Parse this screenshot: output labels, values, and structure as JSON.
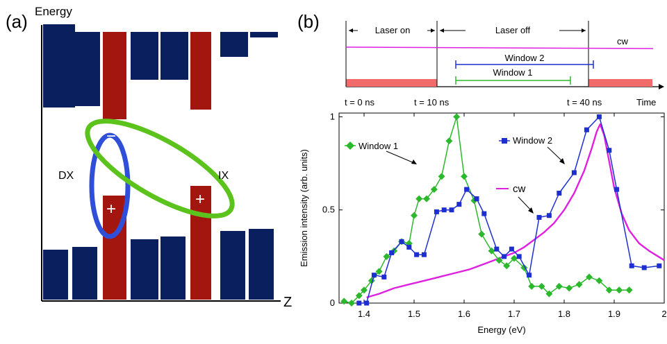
{
  "panel_a": {
    "label": "(a)",
    "y_axis_label": "Energy",
    "x_axis_label": "Z",
    "dx_label": "DX",
    "ix_label": "IX",
    "minus_sign": "−",
    "plus_sign": "+",
    "colors": {
      "barrier": "#0a1f5e",
      "well": "#a3150f",
      "dx_loop": "#2f4fd9",
      "ix_loop": "#5cc21c"
    }
  },
  "panel_b": {
    "label": "(b)",
    "timing": {
      "laser_on": "Laser on",
      "laser_off": "Laser off",
      "cw": "cw",
      "window1": "Window 1",
      "window2": "Window 2",
      "t0": "t = 0 ns",
      "t10": "t = 10 ns",
      "t40": "t = 40 ns",
      "time": "Time",
      "pulse_color": "#f26b6b",
      "cw_color": "#e020e0",
      "window1_color": "#2cb82c",
      "window2_color": "#1d2fd1"
    }
  },
  "chart_data": {
    "type": "line",
    "xlabel": "Energy (eV)",
    "ylabel": "Emission intensity (arb. units)",
    "xlim": [
      1.35,
      2.0
    ],
    "ylim": [
      0,
      1.02
    ],
    "xticks": [
      1.4,
      1.5,
      1.6,
      1.7,
      1.8,
      1.9,
      2.0
    ],
    "xtick_labels": [
      "1.4",
      "1.5",
      "1.6",
      "1.7",
      "1.8",
      "1.9",
      "2"
    ],
    "yticks": [
      0,
      0.5,
      1
    ],
    "ytick_labels": [
      "0",
      "0.5",
      "1"
    ],
    "series": [
      {
        "name": "Window 1",
        "color": "#2cb82c",
        "marker": "diamond",
        "x": [
          1.36,
          1.375,
          1.39,
          1.4,
          1.415,
          1.43,
          1.445,
          1.46,
          1.475,
          1.49,
          1.5,
          1.51,
          1.525,
          1.54,
          1.555,
          1.57,
          1.585,
          1.6,
          1.62,
          1.635,
          1.655,
          1.67,
          1.685,
          1.7,
          1.72,
          1.735,
          1.755,
          1.77,
          1.79,
          1.81,
          1.83,
          1.85,
          1.87,
          1.89,
          1.91,
          1.93
        ],
        "y": [
          0.01,
          0.0,
          0.04,
          0.07,
          0.12,
          0.17,
          0.25,
          0.28,
          0.33,
          0.32,
          0.47,
          0.56,
          0.56,
          0.61,
          0.68,
          0.87,
          1.0,
          0.68,
          0.55,
          0.37,
          0.28,
          0.23,
          0.2,
          0.24,
          0.19,
          0.09,
          0.09,
          0.05,
          0.09,
          0.08,
          0.1,
          0.14,
          0.12,
          0.07,
          0.07,
          0.07
        ]
      },
      {
        "name": "Window 2",
        "color": "#1d2fd1",
        "marker": "square",
        "x": [
          1.39,
          1.405,
          1.42,
          1.44,
          1.455,
          1.475,
          1.49,
          1.505,
          1.52,
          1.545,
          1.56,
          1.575,
          1.59,
          1.605,
          1.625,
          1.64,
          1.665,
          1.68,
          1.695,
          1.71,
          1.73,
          1.75,
          1.77,
          1.79,
          1.82,
          1.845,
          1.87,
          1.89,
          1.905,
          1.935,
          1.96,
          1.99
        ],
        "y": [
          0.0,
          0.0,
          0.15,
          0.14,
          0.27,
          0.33,
          0.3,
          0.26,
          0.26,
          0.49,
          0.5,
          0.5,
          0.53,
          0.61,
          0.56,
          0.48,
          0.29,
          0.25,
          0.29,
          0.25,
          0.15,
          0.46,
          0.47,
          0.59,
          0.7,
          0.93,
          1.0,
          0.82,
          0.61,
          0.2,
          0.19,
          0.2
        ]
      },
      {
        "name": "cw",
        "color": "#e020e0",
        "marker": "none",
        "x": [
          1.405,
          1.43,
          1.46,
          1.49,
          1.52,
          1.55,
          1.58,
          1.61,
          1.64,
          1.67,
          1.7,
          1.72,
          1.74,
          1.76,
          1.78,
          1.8,
          1.82,
          1.84,
          1.855,
          1.865,
          1.872,
          1.88,
          1.89,
          1.9,
          1.915,
          1.93,
          1.95,
          1.97,
          2.0
        ],
        "y": [
          0.03,
          0.05,
          0.08,
          0.1,
          0.12,
          0.14,
          0.16,
          0.18,
          0.21,
          0.24,
          0.27,
          0.3,
          0.34,
          0.38,
          0.43,
          0.5,
          0.59,
          0.71,
          0.83,
          0.92,
          0.96,
          0.9,
          0.76,
          0.62,
          0.48,
          0.39,
          0.32,
          0.28,
          0.23
        ]
      }
    ],
    "annotations": [
      {
        "text": "Window 1"
      },
      {
        "text": "Window 2"
      },
      {
        "text": "cw"
      }
    ]
  }
}
